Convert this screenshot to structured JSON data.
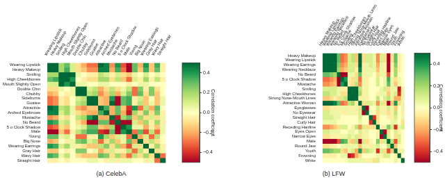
{
  "chart_data": [
    {
      "type": "heatmap",
      "title": "(a) CelebA",
      "categories": [
        "Wearing Lipstick",
        "Heavy Makeup",
        "Smiling",
        "High Cheekbones",
        "Mouth Slightly Open",
        "Double Chin",
        "Chubby",
        "Sideburns",
        "Goatee",
        "Attractive",
        "Arched Eyebrows",
        "Mustache",
        "No Beard",
        "5 o Clock Shadow",
        "Male",
        "Young",
        "Big Nose",
        "Wearing Earrings",
        "Gray Hair",
        "Wavy Hair",
        "Straight Hair"
      ],
      "cells": [
        [
          1,
          0.8,
          0.2,
          0.3,
          0.1,
          -0.1,
          -0.2,
          -0.3,
          -0.3,
          0.5,
          0.45,
          -0.25,
          0.4,
          -0.35,
          -0.8,
          0.3,
          -0.2,
          0.4,
          -0.15,
          0.35,
          -0.05
        ],
        [
          0.8,
          1,
          0.2,
          0.35,
          0.1,
          -0.1,
          -0.15,
          -0.25,
          -0.25,
          0.45,
          0.45,
          -0.2,
          0.35,
          -0.3,
          -0.65,
          0.3,
          -0.15,
          0.35,
          -0.15,
          0.3,
          -0.05
        ],
        [
          0.2,
          0.2,
          1,
          0.7,
          0.55,
          0.05,
          0,
          -0.05,
          -0.05,
          0.15,
          0.1,
          -0.05,
          0.1,
          -0.1,
          -0.15,
          0.05,
          0,
          0.1,
          0,
          0.05,
          0
        ],
        [
          0.3,
          0.35,
          0.7,
          1,
          0.4,
          0,
          -0.05,
          -0.1,
          -0.1,
          0.2,
          0.2,
          -0.1,
          0.15,
          -0.15,
          -0.3,
          0.1,
          -0.05,
          0.2,
          -0.05,
          0.15,
          -0.05
        ],
        [
          0.1,
          0.1,
          0.55,
          0.4,
          1,
          0.05,
          0.05,
          0,
          0,
          0.05,
          0.05,
          0,
          0,
          0,
          -0.05,
          0,
          0.05,
          0.05,
          0,
          0,
          0
        ],
        [
          -0.1,
          -0.1,
          0.05,
          0,
          0.05,
          1,
          0.5,
          0.1,
          0.15,
          -0.2,
          -0.1,
          0.15,
          -0.1,
          0.05,
          0.15,
          -0.3,
          0.25,
          -0.05,
          0.25,
          -0.1,
          0
        ],
        [
          -0.2,
          -0.15,
          0,
          -0.05,
          0.05,
          0.5,
          1,
          0.15,
          0.2,
          -0.25,
          -0.15,
          0.2,
          -0.2,
          0.1,
          0.25,
          -0.3,
          0.3,
          -0.1,
          0.25,
          -0.15,
          0
        ],
        [
          -0.3,
          -0.25,
          -0.05,
          -0.1,
          0,
          0.1,
          0.15,
          1,
          0.6,
          -0.15,
          -0.2,
          0.4,
          -0.5,
          0.3,
          0.35,
          -0.05,
          0.1,
          -0.15,
          0,
          -0.15,
          0.05
        ],
        [
          -0.3,
          -0.25,
          -0.05,
          -0.1,
          0,
          0.15,
          0.2,
          0.6,
          1,
          -0.15,
          -0.2,
          0.6,
          -0.6,
          0.3,
          0.35,
          -0.05,
          0.15,
          -0.15,
          0.05,
          -0.15,
          0.05
        ],
        [
          0.5,
          0.45,
          0.15,
          0.2,
          0.05,
          -0.2,
          -0.25,
          -0.15,
          -0.15,
          1,
          0.35,
          -0.2,
          0.3,
          -0.15,
          -0.4,
          0.4,
          -0.3,
          0.15,
          -0.2,
          0.3,
          0
        ],
        [
          0.45,
          0.45,
          0.1,
          0.2,
          0.05,
          -0.1,
          -0.15,
          -0.2,
          -0.2,
          0.35,
          1,
          -0.2,
          0.3,
          -0.2,
          -0.45,
          0.2,
          -0.1,
          0.25,
          -0.1,
          0.25,
          -0.05
        ],
        [
          -0.25,
          -0.2,
          -0.05,
          -0.1,
          0,
          0.15,
          0.2,
          0.4,
          0.6,
          -0.2,
          -0.2,
          1,
          -0.45,
          0.2,
          0.3,
          -0.15,
          0.2,
          -0.1,
          0.1,
          -0.1,
          0.05
        ],
        [
          0.4,
          0.35,
          0.1,
          0.15,
          0,
          -0.1,
          -0.2,
          -0.5,
          -0.6,
          0.3,
          0.3,
          -0.45,
          1,
          -0.5,
          -0.5,
          0.1,
          -0.15,
          0.2,
          -0.05,
          0.2,
          -0.05
        ],
        [
          -0.35,
          -0.3,
          -0.1,
          -0.15,
          0,
          0.05,
          0.1,
          0.3,
          0.3,
          -0.15,
          -0.2,
          0.2,
          -0.5,
          1,
          0.4,
          0.05,
          0.05,
          -0.2,
          -0.05,
          -0.15,
          0.05
        ],
        [
          -0.8,
          -0.65,
          -0.15,
          -0.3,
          -0.05,
          0.15,
          0.25,
          0.35,
          0.35,
          -0.4,
          -0.45,
          0.3,
          -0.5,
          0.4,
          1,
          -0.3,
          0.3,
          -0.35,
          0.15,
          -0.3,
          0.05
        ],
        [
          0.3,
          0.3,
          0.05,
          0.1,
          0,
          -0.3,
          -0.3,
          -0.05,
          -0.05,
          0.4,
          0.2,
          -0.15,
          0.1,
          0.05,
          -0.3,
          1,
          -0.2,
          0.1,
          -0.3,
          0.15,
          0
        ],
        [
          -0.2,
          -0.15,
          0,
          -0.05,
          0.05,
          0.25,
          0.3,
          0.1,
          0.15,
          -0.3,
          -0.1,
          0.2,
          -0.15,
          0.05,
          0.3,
          -0.2,
          1,
          -0.1,
          0.15,
          -0.1,
          0
        ],
        [
          0.4,
          0.35,
          0.1,
          0.2,
          0.05,
          -0.05,
          -0.1,
          -0.15,
          -0.15,
          0.15,
          0.25,
          -0.1,
          0.2,
          -0.2,
          -0.35,
          0.1,
          -0.1,
          1,
          -0.05,
          0.2,
          -0.05
        ],
        [
          -0.15,
          -0.15,
          0,
          -0.05,
          0,
          0.25,
          0.25,
          0,
          0.05,
          -0.2,
          -0.1,
          0.1,
          -0.05,
          -0.05,
          0.15,
          -0.3,
          0.15,
          -0.05,
          1,
          -0.1,
          0.05
        ],
        [
          0.35,
          0.3,
          0.05,
          0.15,
          0,
          -0.1,
          -0.15,
          -0.15,
          -0.15,
          0.3,
          0.25,
          -0.1,
          0.2,
          -0.15,
          -0.3,
          0.15,
          -0.1,
          0.2,
          -0.1,
          1,
          -0.3
        ],
        [
          -0.05,
          -0.05,
          0,
          -0.05,
          0,
          0,
          0,
          0.05,
          0.05,
          0,
          -0.05,
          0.05,
          -0.05,
          0.05,
          0.05,
          0,
          0,
          -0.05,
          0.05,
          -0.3,
          1
        ]
      ],
      "color_label": "Correlation coefficient",
      "color_range": [
        -0.5,
        0.5
      ],
      "color_ticks": [
        {
          "value": -0.4,
          "label": "−0.4"
        },
        {
          "value": -0.2,
          "label": "−0.2"
        },
        {
          "value": 0,
          "label": "0.0"
        },
        {
          "value": 0.2,
          "label": "0.2"
        },
        {
          "value": 0.4,
          "label": "0.4"
        }
      ]
    },
    {
      "type": "heatmap",
      "title": "(b) LFW",
      "categories": [
        "Heavy Makeup",
        "Wearing Lipstick",
        "Wearing Earrings",
        "Wearing Necklace",
        "No Beard",
        "5 o Clock Shadow",
        "Mustache",
        "Smiling",
        "High Cheekbones",
        "Strong Nose-Mouth Lines",
        "Attractive Woman",
        "Eyeglasses",
        "No Eyewear",
        "Straight Hair",
        "Curly Hair",
        "Receding Hairline",
        "Eyes Open",
        "Narrow Eyes",
        "Male",
        "Round Jaw",
        "Youth",
        "Frowning",
        "White"
      ],
      "cells": [
        [
          1,
          0.8,
          0.6,
          0.5,
          0.3,
          -0.3,
          -0.25,
          0.1,
          0.15,
          -0.15,
          0.6,
          -0.1,
          0.1,
          0.1,
          0.05,
          -0.25,
          0.1,
          -0.1,
          -0.75,
          -0.1,
          0.3,
          -0.05,
          0
        ],
        [
          0.8,
          1,
          0.6,
          0.5,
          0.3,
          -0.3,
          -0.25,
          0.1,
          0.15,
          -0.15,
          0.55,
          -0.1,
          0.1,
          0.1,
          0.05,
          -0.25,
          0.1,
          -0.1,
          -0.75,
          -0.1,
          0.3,
          -0.05,
          0
        ],
        [
          0.6,
          0.6,
          1,
          0.55,
          0.25,
          -0.25,
          -0.2,
          0.1,
          0.1,
          -0.1,
          0.5,
          -0.05,
          0.05,
          0.1,
          0.05,
          -0.2,
          0.05,
          -0.05,
          -0.6,
          -0.05,
          0.25,
          -0.05,
          0
        ],
        [
          0.5,
          0.5,
          0.55,
          1,
          0.2,
          -0.2,
          -0.15,
          0.1,
          0.1,
          -0.05,
          0.45,
          -0.05,
          0.05,
          0.05,
          0.05,
          -0.15,
          0.05,
          -0.05,
          -0.5,
          -0.05,
          0.2,
          -0.05,
          0
        ],
        [
          0.3,
          0.3,
          0.25,
          0.2,
          1,
          -0.5,
          -0.55,
          0.05,
          0.05,
          -0.1,
          0.3,
          -0.05,
          0.05,
          0.05,
          0,
          -0.1,
          0.05,
          -0.05,
          -0.35,
          0,
          0.2,
          0,
          0
        ],
        [
          -0.3,
          -0.3,
          -0.25,
          -0.2,
          -0.5,
          1,
          0.4,
          -0.05,
          -0.1,
          0.1,
          -0.3,
          0.05,
          -0.05,
          0,
          0,
          0.1,
          0,
          0.05,
          0.35,
          0.05,
          -0.1,
          0.05,
          0
        ],
        [
          -0.25,
          -0.25,
          -0.2,
          -0.15,
          -0.55,
          0.4,
          1,
          -0.05,
          -0.1,
          0.15,
          -0.25,
          0.05,
          -0.05,
          0,
          0,
          0.1,
          0,
          0.05,
          0.3,
          0.05,
          -0.15,
          0.05,
          0
        ],
        [
          0.1,
          0.1,
          0.1,
          0.1,
          0.05,
          -0.05,
          -0.05,
          1,
          0.7,
          0.55,
          0.15,
          -0.05,
          0.05,
          0,
          0,
          0,
          0.05,
          0.1,
          -0.1,
          0.05,
          0.05,
          -0.45,
          0.05
        ],
        [
          0.15,
          0.15,
          0.1,
          0.1,
          0.05,
          -0.1,
          -0.1,
          0.7,
          1,
          0.5,
          0.2,
          -0.05,
          0.05,
          0,
          0,
          -0.05,
          0.05,
          0.05,
          -0.15,
          0.05,
          0.1,
          -0.4,
          0.05
        ],
        [
          -0.15,
          -0.15,
          -0.1,
          -0.05,
          -0.1,
          0.1,
          0.15,
          0.55,
          0.5,
          1,
          -0.05,
          0.05,
          -0.05,
          0,
          0,
          0.15,
          0,
          0.1,
          0.15,
          0.05,
          -0.2,
          -0.2,
          0.05
        ],
        [
          0.6,
          0.55,
          0.5,
          0.45,
          0.3,
          -0.3,
          -0.25,
          0.15,
          0.2,
          -0.05,
          1,
          -0.1,
          0.1,
          0.1,
          0.05,
          -0.25,
          0.1,
          -0.1,
          -0.6,
          -0.15,
          0.4,
          -0.1,
          0.05
        ],
        [
          -0.1,
          -0.1,
          -0.05,
          -0.05,
          -0.05,
          0.05,
          0.05,
          -0.05,
          -0.05,
          0.05,
          -0.1,
          1,
          -0.8,
          0,
          0,
          0.1,
          -0.05,
          0.05,
          0.1,
          0.05,
          -0.15,
          0,
          0.05
        ],
        [
          0.1,
          0.1,
          0.05,
          0.05,
          0.05,
          -0.05,
          -0.05,
          0.05,
          0.05,
          -0.05,
          0.1,
          -0.8,
          1,
          0,
          0,
          -0.1,
          0.05,
          -0.05,
          -0.1,
          -0.05,
          0.15,
          0,
          -0.05
        ],
        [
          0.1,
          0.1,
          0.1,
          0.05,
          0.05,
          0,
          0,
          0,
          0,
          0,
          0.1,
          0,
          0,
          1,
          -0.4,
          -0.1,
          0,
          0,
          -0.05,
          -0.05,
          0.1,
          0,
          0.05
        ],
        [
          0.05,
          0.05,
          0.05,
          0.05,
          0,
          0,
          0,
          0,
          0,
          0,
          0.05,
          0,
          0,
          -0.4,
          1,
          -0.1,
          0,
          0,
          0,
          0.05,
          0.05,
          0,
          -0.1
        ],
        [
          -0.25,
          -0.25,
          -0.2,
          -0.15,
          -0.1,
          0.1,
          0.1,
          0,
          -0.05,
          0.15,
          -0.25,
          0.1,
          -0.1,
          -0.1,
          -0.1,
          1,
          -0.05,
          0.05,
          0.25,
          0.1,
          -0.4,
          0.05,
          0.1
        ],
        [
          0.1,
          0.1,
          0.05,
          0.05,
          0.05,
          0,
          0,
          0.05,
          0.05,
          0,
          0.1,
          -0.05,
          0.05,
          0,
          0,
          -0.05,
          1,
          -0.6,
          -0.1,
          0,
          0.1,
          -0.05,
          0
        ],
        [
          -0.1,
          -0.1,
          -0.05,
          -0.05,
          -0.05,
          0.05,
          0.05,
          0.1,
          0.05,
          0.1,
          -0.1,
          0.05,
          -0.05,
          0,
          0,
          0.05,
          -0.6,
          1,
          0.1,
          0,
          -0.1,
          0.1,
          0
        ],
        [
          -0.75,
          -0.75,
          -0.6,
          -0.5,
          -0.35,
          0.35,
          0.3,
          -0.1,
          -0.15,
          0.15,
          -0.6,
          0.1,
          -0.1,
          -0.05,
          0,
          0.25,
          -0.1,
          0.1,
          1,
          0.15,
          -0.35,
          0.1,
          0
        ],
        [
          -0.1,
          -0.1,
          -0.05,
          -0.05,
          0,
          0.05,
          0.05,
          0.05,
          0.05,
          0.05,
          -0.15,
          0.05,
          -0.05,
          -0.05,
          0.05,
          0.1,
          0,
          0,
          0.15,
          1,
          -0.15,
          0,
          0
        ],
        [
          0.3,
          0.3,
          0.25,
          0.2,
          0.2,
          -0.1,
          -0.15,
          0.05,
          0.1,
          -0.2,
          0.4,
          -0.15,
          0.15,
          0.1,
          0.05,
          -0.4,
          0.1,
          -0.1,
          -0.35,
          -0.15,
          1,
          -0.05,
          0.05
        ],
        [
          -0.05,
          -0.05,
          -0.05,
          -0.05,
          0,
          0.05,
          0.05,
          -0.45,
          -0.4,
          -0.2,
          -0.1,
          0,
          0,
          0,
          0,
          0.05,
          -0.05,
          0.1,
          0.1,
          0,
          -0.05,
          1,
          0
        ],
        [
          0,
          0,
          0,
          0,
          0,
          0,
          0,
          0.05,
          0.05,
          0.05,
          0.05,
          0.05,
          -0.05,
          0.05,
          -0.1,
          0.1,
          0,
          0,
          0,
          0,
          0.05,
          0,
          1
        ]
      ],
      "color_label": "Correlation coefficient",
      "color_range": [
        -0.5,
        0.5
      ],
      "color_ticks": [
        {
          "value": -0.4,
          "label": "−0.4"
        },
        {
          "value": -0.2,
          "label": "−0.2"
        },
        {
          "value": 0,
          "label": "0.0"
        },
        {
          "value": 0.2,
          "label": "0.2"
        },
        {
          "value": 0.4,
          "label": "0.4"
        }
      ]
    }
  ]
}
